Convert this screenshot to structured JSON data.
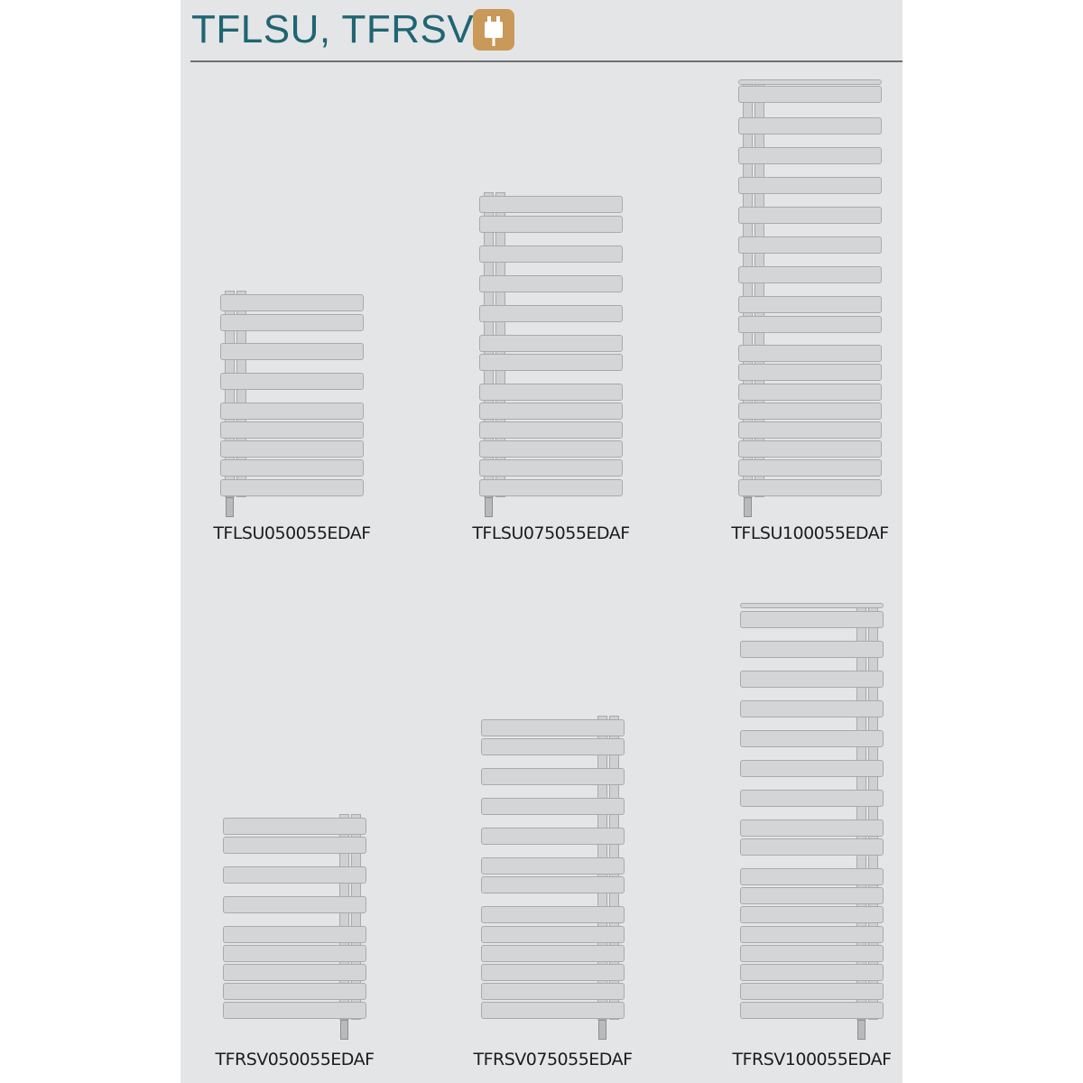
{
  "header": {
    "title": "TFLSU, TFRSV",
    "icon": "electric-plug-icon",
    "icon_color": "#c9995a",
    "title_color": "#1f6572"
  },
  "models": [
    {
      "label": "TFLSU050055EDAF",
      "pipe_side": "left"
    },
    {
      "label": "TFLSU075055EDAF",
      "pipe_side": "left"
    },
    {
      "label": "TFLSU100055EDAF",
      "pipe_side": "left"
    },
    {
      "label": "TFRSV050055EDAF",
      "pipe_side": "right"
    },
    {
      "label": "TFRSV075055EDAF",
      "pipe_side": "right"
    },
    {
      "label": "TFRSV100055EDAF",
      "pipe_side": "right"
    }
  ]
}
